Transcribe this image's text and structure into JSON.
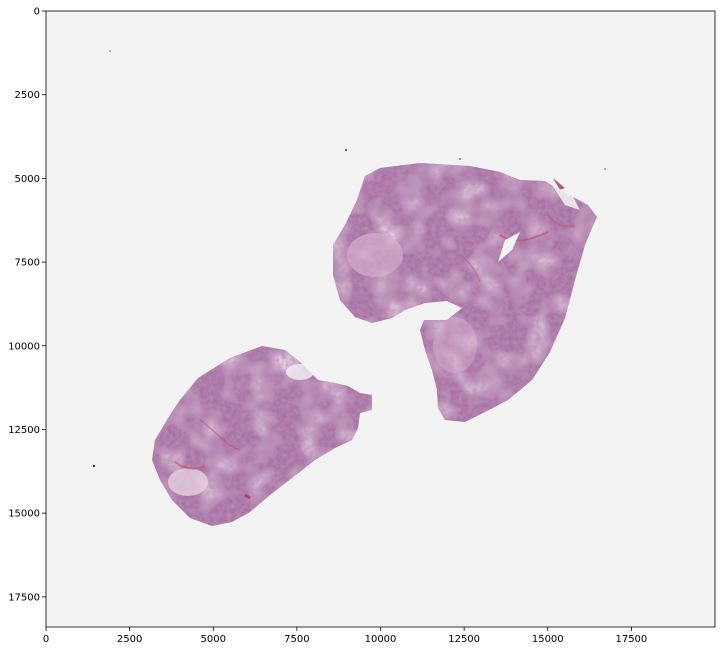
{
  "chart_data": {
    "type": "image",
    "title": "",
    "xlabel": "",
    "ylabel": "",
    "xlim": [
      0,
      20000
    ],
    "ylim": [
      18400,
      0
    ],
    "x_ticks": [
      0,
      2500,
      5000,
      7500,
      10000,
      12500,
      15000,
      17500
    ],
    "x_tick_labels": [
      "0",
      "2500",
      "5000",
      "7500",
      "10000",
      "12500",
      "15000",
      "17500"
    ],
    "y_ticks": [
      0,
      2500,
      5000,
      7500,
      10000,
      12500,
      15000,
      17500
    ],
    "y_tick_labels": [
      "0",
      "2500",
      "5000",
      "7500",
      "10000",
      "12500",
      "15000",
      "17500"
    ],
    "grid": false,
    "colors": {
      "background": "#f3f3f3",
      "tissue_primary": "#a86f9f",
      "tissue_light": "#d8b3cf",
      "tissue_dark": "#7d4c7e",
      "tissue_red": "#c2526f"
    },
    "image_content": "H&E stained whole-slide histology with two tissue fragments"
  }
}
